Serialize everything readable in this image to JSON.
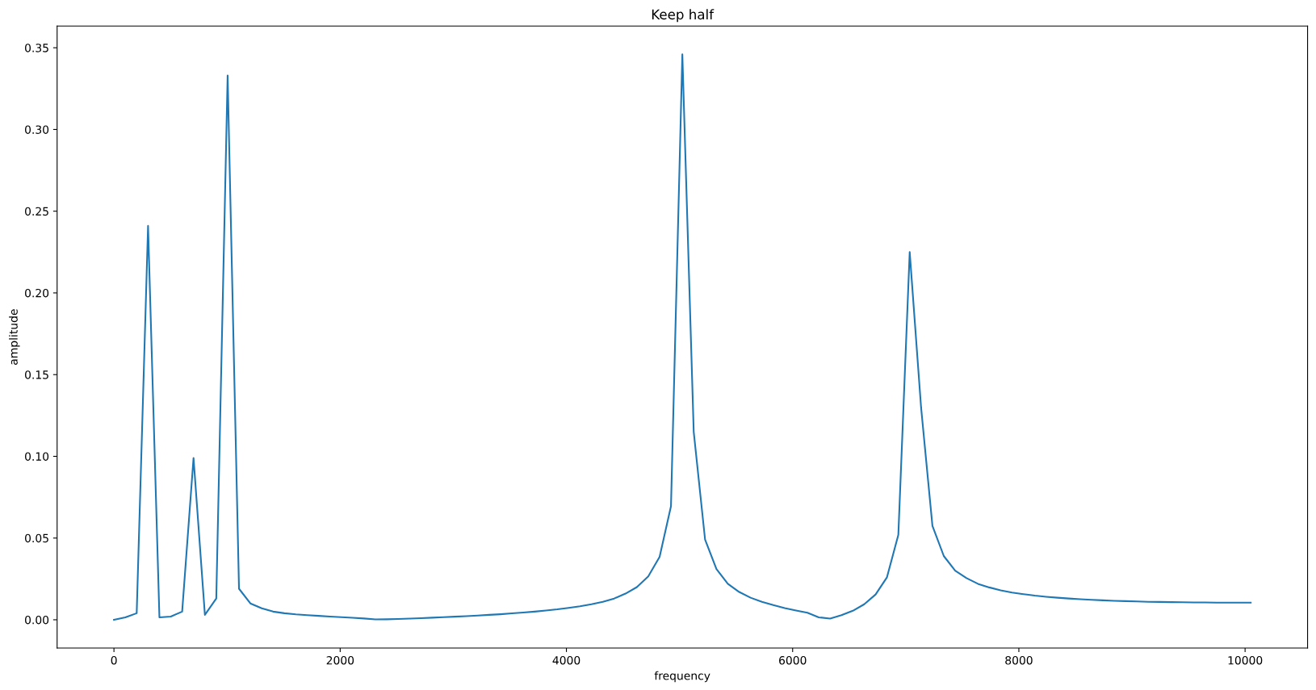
{
  "chart_data": {
    "type": "line",
    "title": "Keep half",
    "xlabel": "frequency",
    "ylabel": "amplitude",
    "xlim": [
      -502.5,
      10552.5
    ],
    "xticks": [
      0,
      2000,
      4000,
      6000,
      8000,
      10000
    ],
    "ylim": [
      -0.0173,
      0.3633
    ],
    "yticks": [
      {
        "value": 0,
        "label": "0.00"
      },
      {
        "value": 0.05,
        "label": "0.05"
      },
      {
        "value": 0.1,
        "label": "0.10"
      },
      {
        "value": 0.15,
        "label": "0.15"
      },
      {
        "value": 0.2,
        "label": "0.20"
      },
      {
        "value": 0.25,
        "label": "0.25"
      },
      {
        "value": 0.3,
        "label": "0.30"
      },
      {
        "value": 0.35,
        "label": "0.35"
      }
    ],
    "grid": false,
    "marker": "none",
    "line_style": "solid",
    "x": [
      0,
      100.5,
      201,
      301.5,
      402,
      502.5,
      603,
      703.5,
      804,
      904.5,
      1005,
      1105.5,
      1206,
      1306.5,
      1407,
      1507.5,
      1608,
      1708.5,
      1809,
      1909.5,
      2010,
      2110.5,
      2211,
      2311.5,
      2412,
      2512.5,
      2613,
      2713.5,
      2814,
      2914.5,
      3015,
      3115.5,
      3216,
      3316.5,
      3417,
      3517.5,
      3618,
      3718.5,
      3819,
      3919.5,
      4020,
      4120.5,
      4221,
      4321.5,
      4422,
      4522.5,
      4623,
      4723.5,
      4824,
      4924.5,
      5025,
      5125.5,
      5226,
      5326.5,
      5427,
      5527.5,
      5628,
      5728.5,
      5829,
      5929.5,
      6030,
      6130.5,
      6231,
      6331.5,
      6432,
      6532.5,
      6633,
      6733.5,
      6834,
      6934.5,
      7035,
      7135.5,
      7236,
      7336.5,
      7437,
      7537.5,
      7638,
      7738.5,
      7839,
      7939.5,
      8040,
      8140.5,
      8241,
      8341.5,
      8442,
      8542.5,
      8643,
      8743.5,
      8844,
      8944.5,
      9045,
      9145.5,
      9246,
      9346.5,
      9447,
      9547.5,
      9648,
      9748.5,
      9849,
      9949.5,
      10050
    ],
    "series": [
      {
        "color": "#1f77b4",
        "values": [
          0.0,
          0.0015,
          0.004,
          0.241,
          0.0015,
          0.002,
          0.005,
          0.099,
          0.003,
          0.013,
          0.333,
          0.019,
          0.01,
          0.007,
          0.005,
          0.004,
          0.0033,
          0.0028,
          0.0024,
          0.002,
          0.0016,
          0.0012,
          0.0008,
          0.0002,
          0.0003,
          0.0005,
          0.0007,
          0.001,
          0.0013,
          0.0016,
          0.0019,
          0.0022,
          0.0026,
          0.003,
          0.0034,
          0.0039,
          0.0044,
          0.005,
          0.0057,
          0.0064,
          0.0073,
          0.0083,
          0.0095,
          0.011,
          0.013,
          0.016,
          0.02,
          0.0265,
          0.0385,
          0.0695,
          0.346,
          0.115,
          0.049,
          0.031,
          0.022,
          0.017,
          0.0135,
          0.011,
          0.009,
          0.0072,
          0.0057,
          0.0043,
          0.0015,
          0.0007,
          0.0028,
          0.0055,
          0.0095,
          0.0155,
          0.026,
          0.052,
          0.225,
          0.13,
          0.0575,
          0.039,
          0.03,
          0.0255,
          0.022,
          0.0198,
          0.018,
          0.0167,
          0.0157,
          0.0148,
          0.0141,
          0.0135,
          0.013,
          0.0126,
          0.0122,
          0.0119,
          0.0116,
          0.0114,
          0.0112,
          0.011,
          0.0109,
          0.0108,
          0.0107,
          0.0106,
          0.0106,
          0.0105,
          0.0105,
          0.0105,
          0.0105
        ]
      }
    ]
  }
}
